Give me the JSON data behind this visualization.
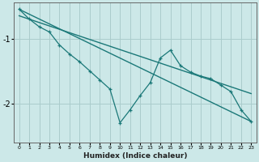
{
  "xlabel": "Humidex (Indice chaleur)",
  "bg_color": "#cce8e8",
  "grid_color": "#aacccc",
  "line_color": "#1a7878",
  "xlim": [
    -0.5,
    23.5
  ],
  "ylim": [
    -2.6,
    -0.45
  ],
  "xticks": [
    0,
    1,
    2,
    3,
    4,
    5,
    6,
    7,
    8,
    9,
    10,
    11,
    12,
    13,
    14,
    15,
    16,
    17,
    18,
    19,
    20,
    21,
    22,
    23
  ],
  "yticks": [
    -2,
    -1
  ],
  "series": [
    {
      "x": [
        0,
        23
      ],
      "y": [
        -0.55,
        -2.28
      ],
      "marker": null,
      "linewidth": 1.0
    },
    {
      "x": [
        0,
        23
      ],
      "y": [
        -0.65,
        -1.85
      ],
      "marker": null,
      "linewidth": 1.0
    },
    {
      "x": [
        0,
        1,
        2,
        3,
        4,
        5,
        6,
        7,
        8,
        9,
        10,
        11,
        12,
        13,
        14,
        15,
        16,
        17,
        18,
        19,
        20,
        21,
        22,
        23
      ],
      "y": [
        -0.55,
        -0.7,
        -0.82,
        -0.9,
        -1.1,
        -1.24,
        -1.36,
        -1.5,
        -1.64,
        -1.78,
        -2.3,
        -2.1,
        -1.88,
        -1.68,
        -1.3,
        -1.18,
        -1.42,
        -1.52,
        -1.58,
        -1.62,
        -1.72,
        -1.82,
        -2.1,
        -2.28
      ],
      "marker": "+",
      "linewidth": 0.9
    }
  ]
}
